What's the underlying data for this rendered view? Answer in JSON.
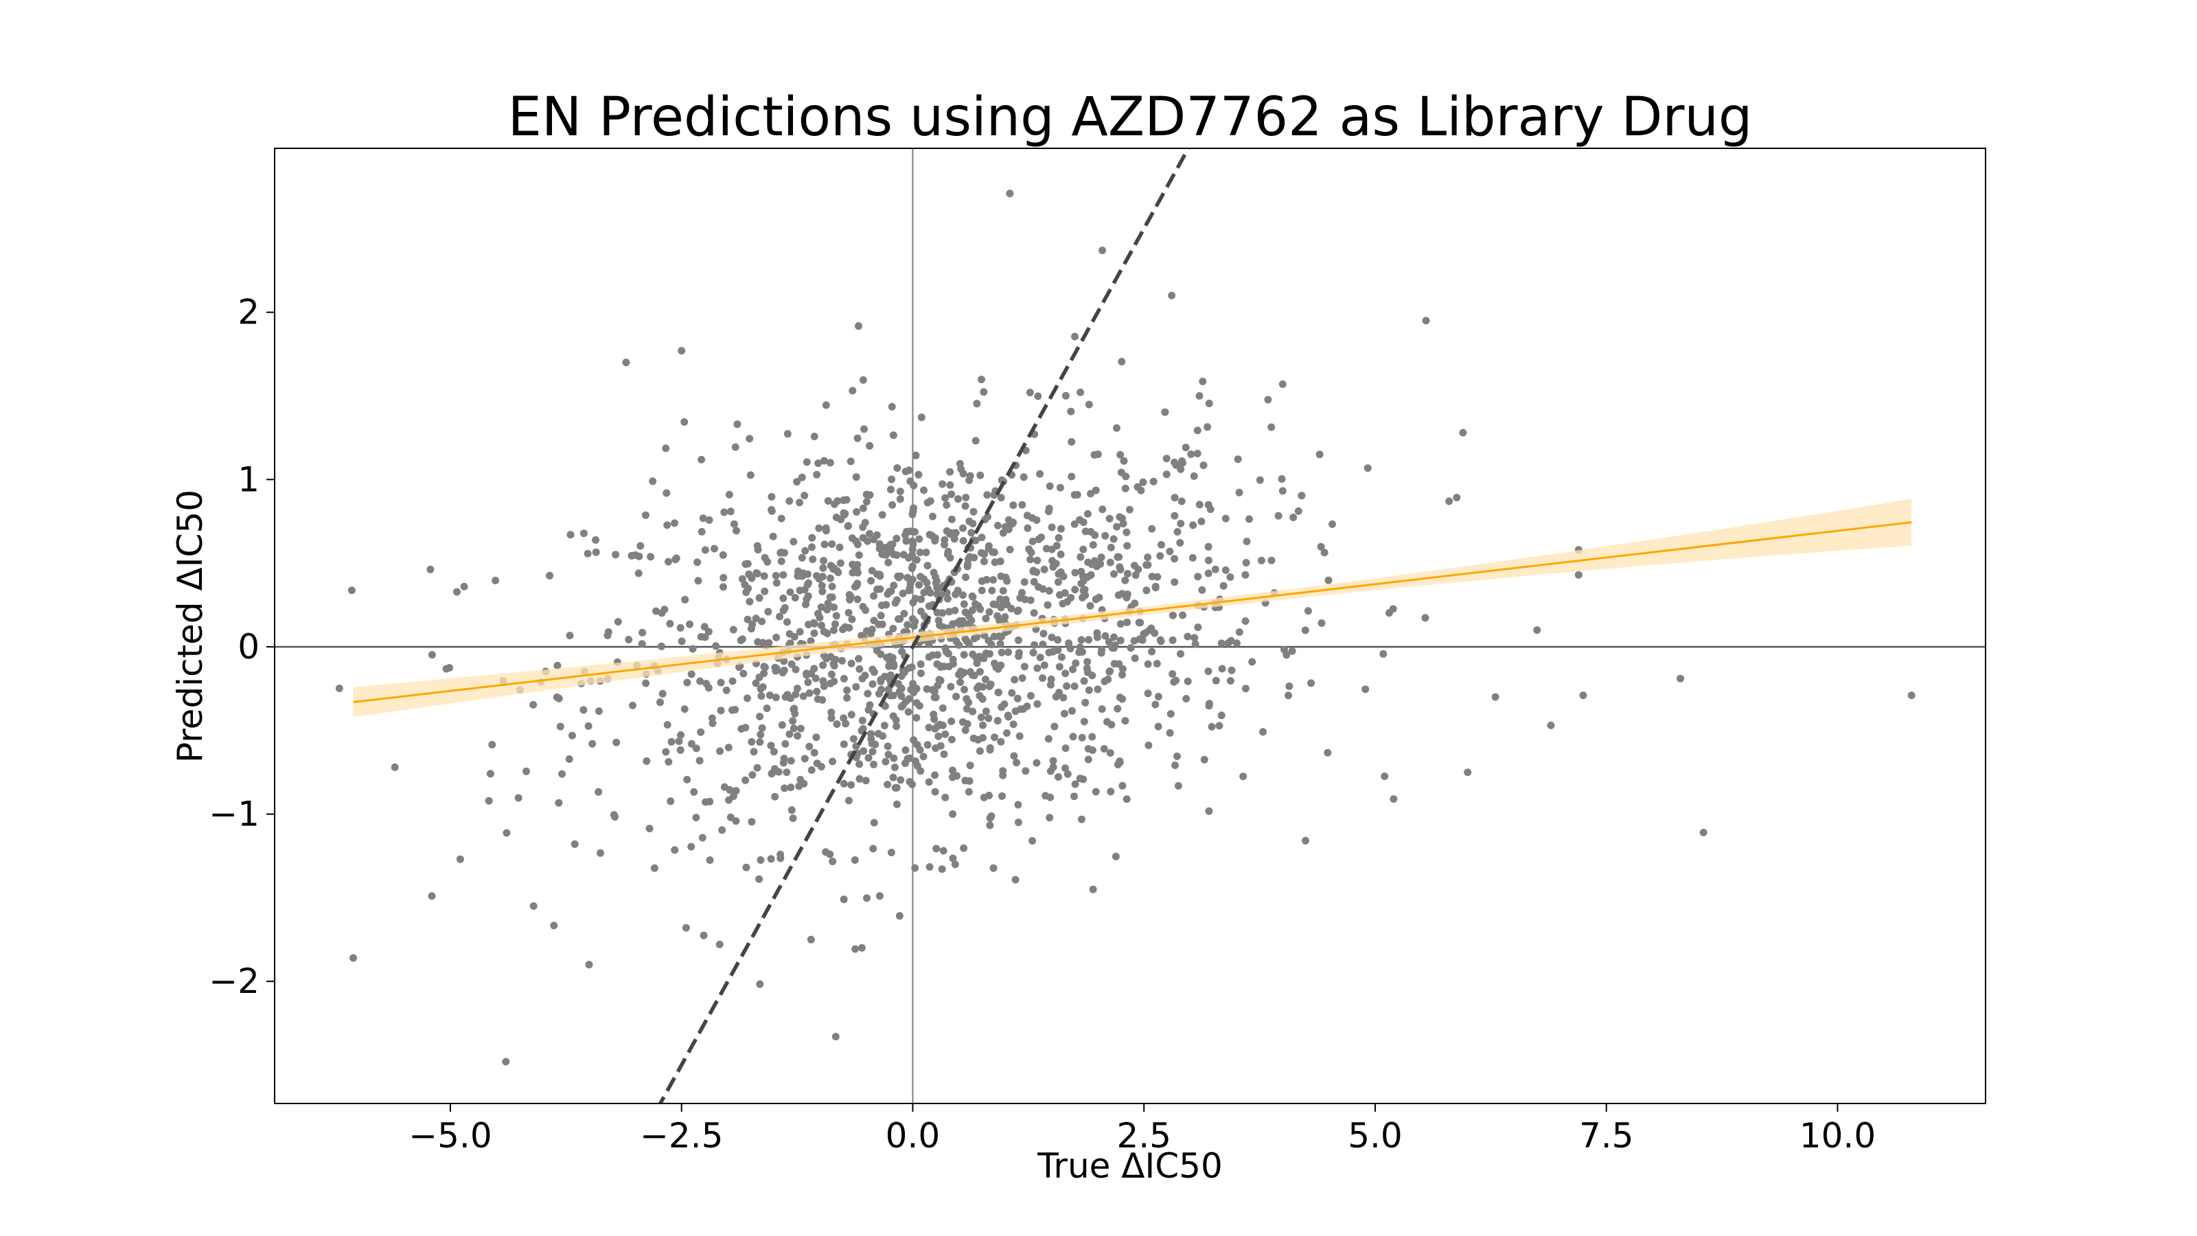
{
  "chart_data": {
    "type": "scatter",
    "title": "EN Predictions using AZD7762 as Library Drug",
    "xlabel": "True ΔIC50",
    "ylabel": "Predicted ΔIC50",
    "xlim": [
      -6.9,
      11.6
    ],
    "ylim": [
      -2.73,
      2.98
    ],
    "xticks": [
      -5.0,
      -2.5,
      0.0,
      2.5,
      5.0,
      7.5,
      10.0
    ],
    "xtick_labels": [
      "−5.0",
      "−2.5",
      "0.0",
      "2.5",
      "5.0",
      "7.5",
      "10.0"
    ],
    "yticks": [
      -2,
      -1,
      0,
      1,
      2
    ],
    "ytick_labels": [
      "−2",
      "−1",
      "0",
      "1",
      "2"
    ],
    "grid": false,
    "reference_lines": {
      "x_zero": 0,
      "y_zero": 0,
      "identity_line": {
        "style": "dashed",
        "slope": 1,
        "intercept": 0,
        "color": "#444444"
      }
    },
    "regression": {
      "x_range": [
        -6.05,
        10.8
      ],
      "slope": 0.0638,
      "intercept": 0.0553,
      "color": "#FFA500",
      "ci_color": "#FFE4B5",
      "ci_halfwidth_center": 0.025,
      "ci_halfwidth_edges": [
        0.09,
        0.14
      ]
    },
    "point_color": "#808080",
    "n_points_generated": 1500,
    "noise_sd_y": 0.58,
    "x_distribution": {
      "mean": 0.2,
      "sd": 1.8
    },
    "outliers": [
      {
        "x": -6.05,
        "y": -1.86
      },
      {
        "x": -4.4,
        "y": -2.48
      },
      {
        "x": -5.6,
        "y": -0.72
      },
      {
        "x": 1.05,
        "y": 2.71
      },
      {
        "x": 5.55,
        "y": 1.95
      },
      {
        "x": 5.95,
        "y": 1.28
      },
      {
        "x": 8.55,
        "y": -1.11
      },
      {
        "x": 10.8,
        "y": -0.29
      },
      {
        "x": 8.3,
        "y": -0.19
      },
      {
        "x": 7.2,
        "y": 0.58
      },
      {
        "x": 7.2,
        "y": 0.43
      },
      {
        "x": 7.25,
        "y": -0.29
      },
      {
        "x": 6.9,
        "y": -0.47
      },
      {
        "x": 6.75,
        "y": 0.1
      },
      {
        "x": 5.8,
        "y": 0.87
      },
      {
        "x": -3.5,
        "y": -1.9
      },
      {
        "x": -4.1,
        "y": -1.55
      },
      {
        "x": -2.5,
        "y": 1.77
      },
      {
        "x": -3.1,
        "y": 1.7
      },
      {
        "x": 2.05,
        "y": 2.37
      },
      {
        "x": 2.8,
        "y": 2.1
      },
      {
        "x": 3.1,
        "y": 1.5
      },
      {
        "x": 4.0,
        "y": 1.57
      },
      {
        "x": 4.4,
        "y": 1.15
      },
      {
        "x": -0.55,
        "y": -1.8
      },
      {
        "x": -1.1,
        "y": -1.75
      },
      {
        "x": 1.95,
        "y": -1.45
      },
      {
        "x": -2.45,
        "y": -1.68
      },
      {
        "x": -5.2,
        "y": -1.49
      },
      {
        "x": 5.2,
        "y": -0.91
      },
      {
        "x": 6.0,
        "y": -0.75
      },
      {
        "x": 6.3,
        "y": -0.3
      },
      {
        "x": -3.7,
        "y": 0.67
      },
      {
        "x": -4.85,
        "y": 0.36
      }
    ]
  }
}
